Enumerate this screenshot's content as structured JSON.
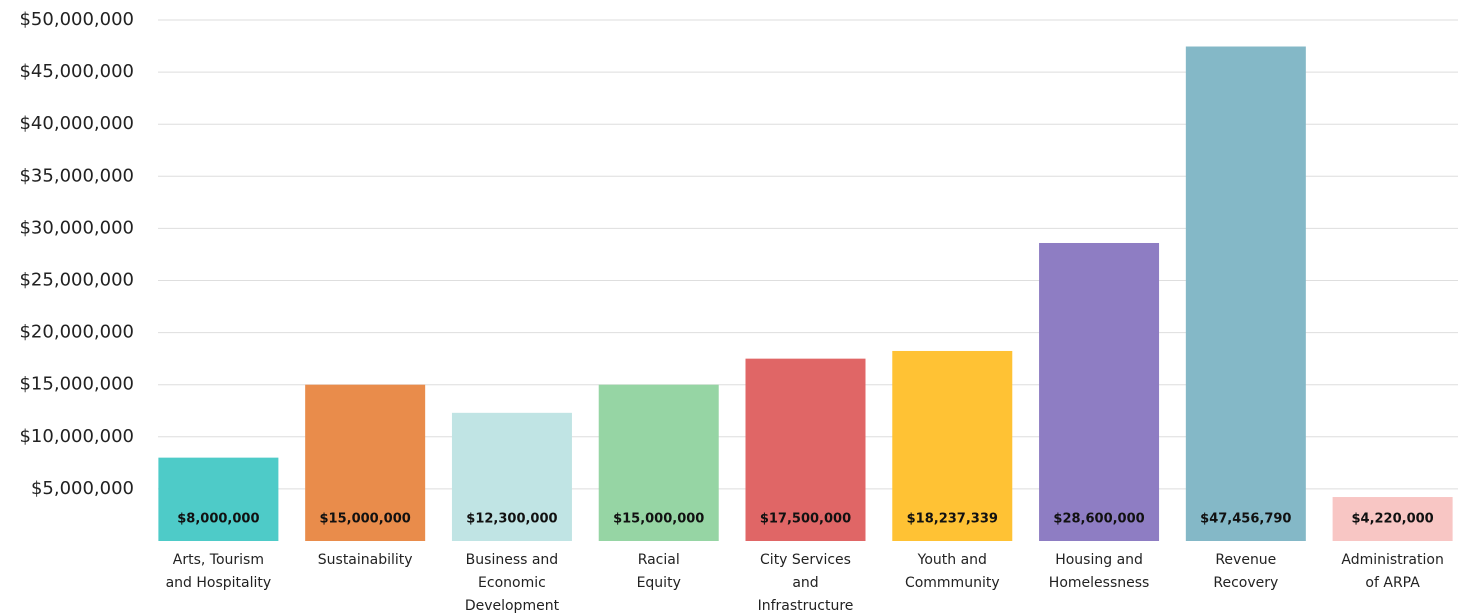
{
  "chart_data": {
    "type": "bar",
    "categories": [
      [
        "Arts, Tourism",
        "and Hospitality"
      ],
      [
        "Sustainability"
      ],
      [
        "Business and",
        "Economic",
        "Development"
      ],
      [
        "Racial",
        "Equity"
      ],
      [
        "City Services",
        "and",
        "Infrastructure"
      ],
      [
        "Youth and",
        "Commmunity"
      ],
      [
        "Housing and",
        "Homelessness"
      ],
      [
        "Revenue",
        "Recovery"
      ],
      [
        "Administration",
        "of ARPA"
      ]
    ],
    "values": [
      8000000,
      15000000,
      12300000,
      15000000,
      17500000,
      18237339,
      28600000,
      47456790,
      4220000
    ],
    "value_labels": [
      "$8,000,000",
      "$15,000,000",
      "$12,300,000",
      "$15,000,000",
      "$17,500,000",
      "$18,237,339",
      "$28,600,000",
      "$47,456,790",
      "$4,220,000"
    ],
    "colors": [
      "#4ecbc8",
      "#e98c4b",
      "#c0e4e4",
      "#96d5a4",
      "#e06666",
      "#ffc234",
      "#8e7dc3",
      "#84b8c7",
      "#f8c6c4"
    ],
    "ylim": [
      0,
      50000000
    ],
    "yticks": [
      {
        "value": 5000000,
        "label": "$5,000,000"
      },
      {
        "value": 10000000,
        "label": "$10,000,000"
      },
      {
        "value": 15000000,
        "label": "$15,000,000"
      },
      {
        "value": 20000000,
        "label": "$20,000,000"
      },
      {
        "value": 25000000,
        "label": "$25,000,000"
      },
      {
        "value": 30000000,
        "label": "$30,000,000"
      },
      {
        "value": 35000000,
        "label": "$35,000,000"
      },
      {
        "value": 40000000,
        "label": "$40,000,000"
      },
      {
        "value": 45000000,
        "label": "$45,000,000"
      },
      {
        "value": 50000000,
        "label": "$50,000,000"
      }
    ],
    "grid": true
  }
}
